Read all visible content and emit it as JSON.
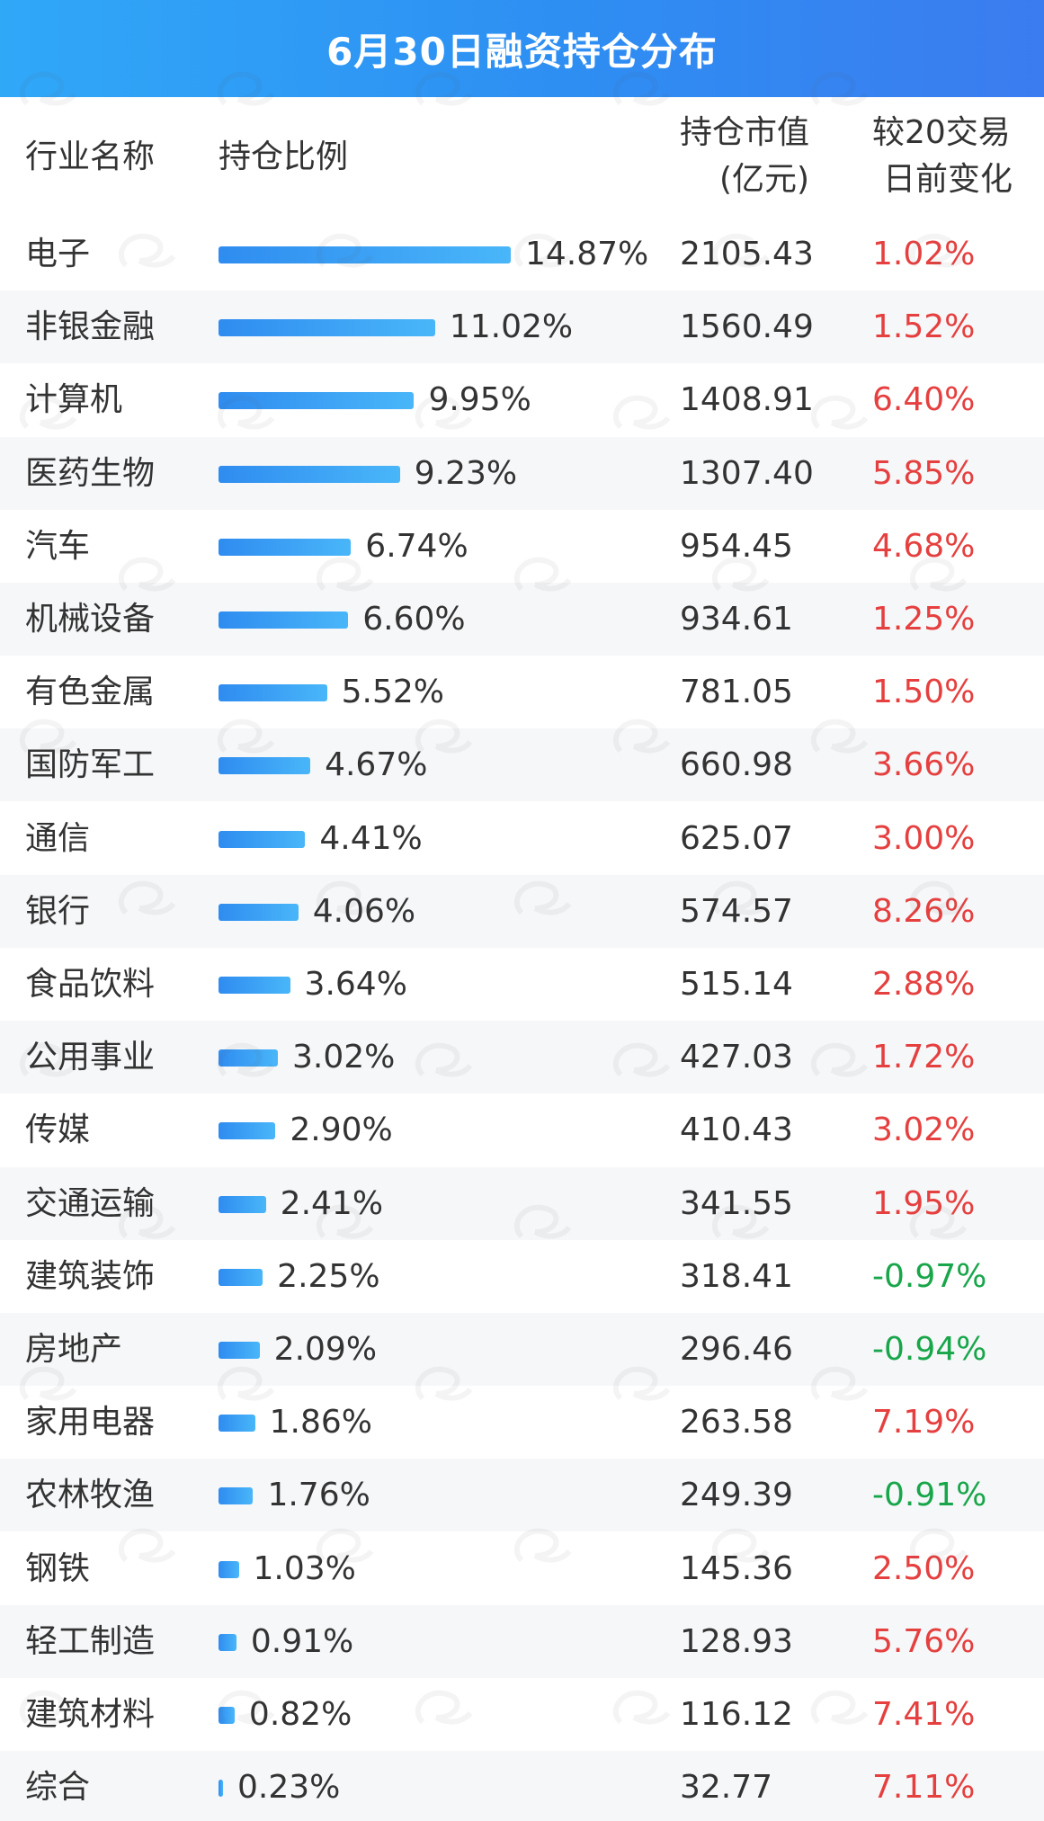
{
  "title": "6月30日融资持仓分布",
  "headers": {
    "industry": "行业名称",
    "ratio": "持仓比例",
    "value_lines": [
      "持仓市值",
      "(亿元)"
    ],
    "change_lines": [
      "较20交易",
      "日前变化"
    ]
  },
  "colors": {
    "title_bg": "#2e8ef2",
    "bar": "#2f8cf0",
    "positive": "#e5403f",
    "negative": "#18a64a",
    "alt_row": "#f6f7f9"
  },
  "chart_data": {
    "type": "bar",
    "orientation": "horizontal",
    "categories": [
      "电子",
      "非银金融",
      "计算机",
      "医药生物",
      "汽车",
      "机械设备",
      "有色金属",
      "国防军工",
      "通信",
      "银行",
      "食品饮料",
      "公用事业",
      "传媒",
      "交通运输",
      "建筑装饰",
      "房地产",
      "家用电器",
      "农林牧渔",
      "钢铁",
      "轻工制造",
      "建筑材料",
      "综合"
    ],
    "values": [
      14.87,
      11.02,
      9.95,
      9.23,
      6.74,
      6.6,
      5.52,
      4.67,
      4.41,
      4.06,
      3.64,
      3.02,
      2.9,
      2.41,
      2.25,
      2.09,
      1.86,
      1.76,
      1.03,
      0.91,
      0.82,
      0.23
    ],
    "value_unit": "%"
  },
  "rows": [
    {
      "name": "电子",
      "ratio": 14.87,
      "ratio_label": "14.87%",
      "value": "2105.43",
      "change": "1.02%",
      "sign": "pos"
    },
    {
      "name": "非银金融",
      "ratio": 11.02,
      "ratio_label": "11.02%",
      "value": "1560.49",
      "change": "1.52%",
      "sign": "pos"
    },
    {
      "name": "计算机",
      "ratio": 9.95,
      "ratio_label": "9.95%",
      "value": "1408.91",
      "change": "6.40%",
      "sign": "pos"
    },
    {
      "name": "医药生物",
      "ratio": 9.23,
      "ratio_label": "9.23%",
      "value": "1307.40",
      "change": "5.85%",
      "sign": "pos"
    },
    {
      "name": "汽车",
      "ratio": 6.74,
      "ratio_label": "6.74%",
      "value": "954.45",
      "change": "4.68%",
      "sign": "pos"
    },
    {
      "name": "机械设备",
      "ratio": 6.6,
      "ratio_label": "6.60%",
      "value": "934.61",
      "change": "1.25%",
      "sign": "pos"
    },
    {
      "name": "有色金属",
      "ratio": 5.52,
      "ratio_label": "5.52%",
      "value": "781.05",
      "change": "1.50%",
      "sign": "pos"
    },
    {
      "name": "国防军工",
      "ratio": 4.67,
      "ratio_label": "4.67%",
      "value": "660.98",
      "change": "3.66%",
      "sign": "pos"
    },
    {
      "name": "通信",
      "ratio": 4.41,
      "ratio_label": "4.41%",
      "value": "625.07",
      "change": "3.00%",
      "sign": "pos"
    },
    {
      "name": "银行",
      "ratio": 4.06,
      "ratio_label": "4.06%",
      "value": "574.57",
      "change": "8.26%",
      "sign": "pos"
    },
    {
      "name": "食品饮料",
      "ratio": 3.64,
      "ratio_label": "3.64%",
      "value": "515.14",
      "change": "2.88%",
      "sign": "pos"
    },
    {
      "name": "公用事业",
      "ratio": 3.02,
      "ratio_label": "3.02%",
      "value": "427.03",
      "change": "1.72%",
      "sign": "pos"
    },
    {
      "name": "传媒",
      "ratio": 2.9,
      "ratio_label": "2.90%",
      "value": "410.43",
      "change": "3.02%",
      "sign": "pos"
    },
    {
      "name": "交通运输",
      "ratio": 2.41,
      "ratio_label": "2.41%",
      "value": "341.55",
      "change": "1.95%",
      "sign": "pos"
    },
    {
      "name": "建筑装饰",
      "ratio": 2.25,
      "ratio_label": "2.25%",
      "value": "318.41",
      "change": "-0.97%",
      "sign": "neg"
    },
    {
      "name": "房地产",
      "ratio": 2.09,
      "ratio_label": "2.09%",
      "value": "296.46",
      "change": "-0.94%",
      "sign": "neg"
    },
    {
      "name": "家用电器",
      "ratio": 1.86,
      "ratio_label": "1.86%",
      "value": "263.58",
      "change": "7.19%",
      "sign": "pos"
    },
    {
      "name": "农林牧渔",
      "ratio": 1.76,
      "ratio_label": "1.76%",
      "value": "249.39",
      "change": "-0.91%",
      "sign": "neg"
    },
    {
      "name": "钢铁",
      "ratio": 1.03,
      "ratio_label": "1.03%",
      "value": "145.36",
      "change": "2.50%",
      "sign": "pos"
    },
    {
      "name": "轻工制造",
      "ratio": 0.91,
      "ratio_label": "0.91%",
      "value": "128.93",
      "change": "5.76%",
      "sign": "pos"
    },
    {
      "name": "建筑材料",
      "ratio": 0.82,
      "ratio_label": "0.82%",
      "value": "116.12",
      "change": "7.41%",
      "sign": "pos"
    },
    {
      "name": "综合",
      "ratio": 0.23,
      "ratio_label": "0.23%",
      "value": "32.77",
      "change": "7.11%",
      "sign": "pos"
    }
  ]
}
